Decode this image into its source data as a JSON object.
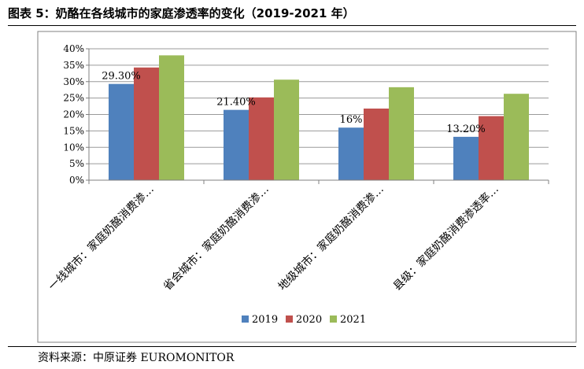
{
  "figure_title": "图表 5：奶酪在各线城市的家庭渗透率的变化（2019-2021 年）",
  "source": "资料来源：中原证券 EUROMONITOR",
  "colors": {
    "2019": "#4F81BD",
    "2020": "#C0504D",
    "2021": "#9BBB59"
  },
  "chart_data": {
    "type": "bar",
    "title": "",
    "xlabel": "",
    "ylabel": "",
    "categories": [
      "一线城市：家庭奶酪消费渗…",
      "省会城市：家庭奶酪消费渗…",
      "地级城市：家庭奶酪消费渗…",
      "县级：家庭奶酪消费渗透率…"
    ],
    "series": [
      {
        "name": "2019",
        "values": [
          29.3,
          21.4,
          16,
          13.2
        ]
      },
      {
        "name": "2020",
        "values": [
          34.3,
          25.2,
          21.8,
          19.5
        ]
      },
      {
        "name": "2021",
        "values": [
          38,
          30.6,
          28.3,
          26.3
        ]
      }
    ],
    "data_labels": [
      "29.30%",
      "21.40%",
      "16%",
      "13.20%"
    ],
    "ylim": [
      0,
      40
    ],
    "yticks": [
      "0%",
      "5%",
      "10%",
      "15%",
      "20%",
      "25%",
      "30%",
      "35%",
      "40%"
    ],
    "grid": true,
    "legend": "bottom"
  }
}
